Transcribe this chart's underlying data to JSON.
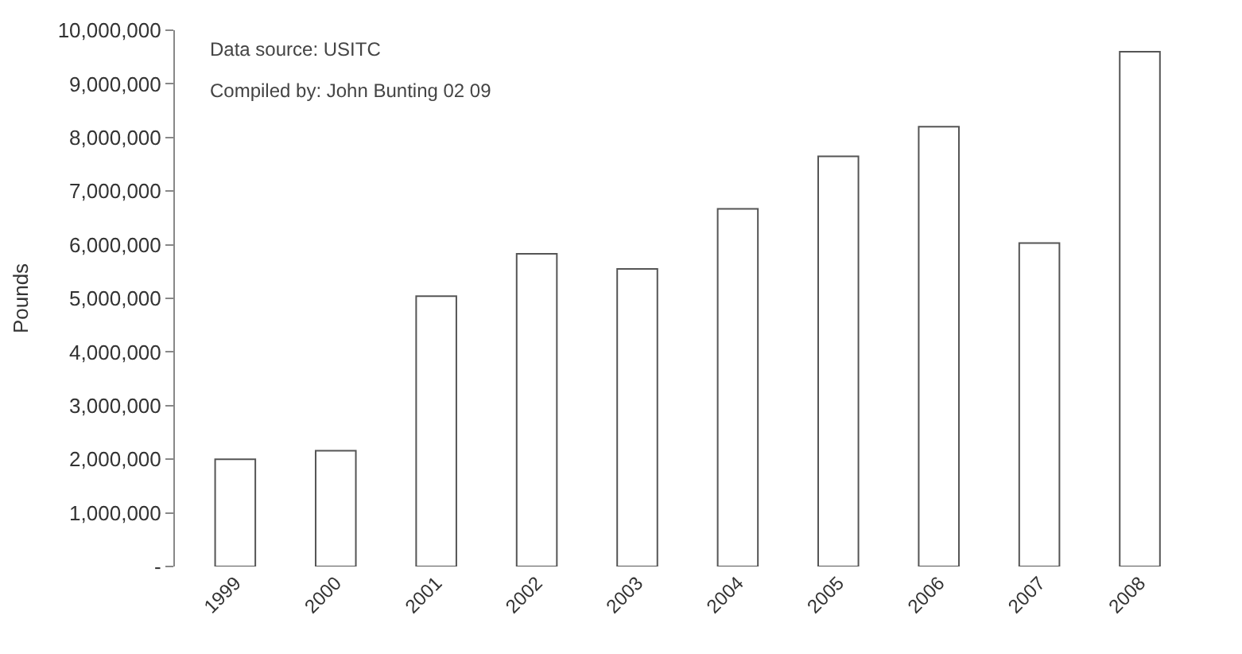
{
  "chart_data": {
    "type": "bar",
    "ylabel": "Pounds",
    "categories": [
      "1999",
      "2000",
      "2001",
      "2002",
      "2003",
      "2004",
      "2005",
      "2006",
      "2007",
      "2008"
    ],
    "values": [
      2000000,
      2160000,
      5040000,
      5830000,
      5550000,
      6670000,
      7650000,
      8200000,
      6030000,
      9600000
    ],
    "color": "#ffffff",
    "ylim": [
      0,
      10000000
    ],
    "yticks": [
      {
        "value": 0,
        "label": "-"
      },
      {
        "value": 1000000,
        "label": "1,000,000"
      },
      {
        "value": 2000000,
        "label": "2,000,000"
      },
      {
        "value": 3000000,
        "label": "3,000,000"
      },
      {
        "value": 4000000,
        "label": "4,000,000"
      },
      {
        "value": 5000000,
        "label": "5,000,000"
      },
      {
        "value": 6000000,
        "label": "6,000,000"
      },
      {
        "value": 7000000,
        "label": "7,000,000"
      },
      {
        "value": 8000000,
        "label": "8,000,000"
      },
      {
        "value": 9000000,
        "label": "9,000,000"
      },
      {
        "value": 10000000,
        "label": "10,000,000"
      }
    ],
    "annotations": [
      "Data source: USITC",
      "Compiled by: John Bunting 02 09"
    ]
  }
}
